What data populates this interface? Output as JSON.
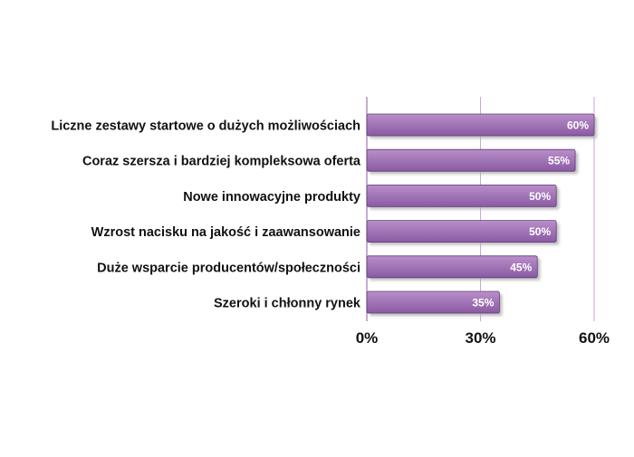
{
  "chart_data": {
    "type": "bar",
    "orientation": "horizontal",
    "categories": [
      "Liczne zestawy startowe o dużych możliwościach",
      "Coraz szersza i bardziej kompleksowa oferta",
      "Nowe innowacyjne produkty",
      "Wzrost nacisku na jakość i zaawansowanie",
      "Duże wsparcie producentów/społeczności",
      "Szeroki i chłonny rynek"
    ],
    "values": [
      60,
      55,
      50,
      50,
      45,
      35
    ],
    "data_labels": [
      "60%",
      "55%",
      "50%",
      "50%",
      "45%",
      "35%"
    ],
    "xlim": [
      0,
      60
    ],
    "xticks": [
      0,
      30,
      60
    ],
    "xtick_labels": [
      "0%",
      "30%",
      "60%"
    ],
    "grid": true,
    "legend": "none",
    "colors": {
      "bar_top": "#b98fc9",
      "bar_bottom": "#8a5aa3",
      "bar_edge": "#5f3a78",
      "shadow": "#b0b0b0",
      "gridline": "#c9a6d6",
      "axis": "#9a7aa8",
      "label_text": "#111111",
      "value_text": "#ffffff"
    }
  }
}
